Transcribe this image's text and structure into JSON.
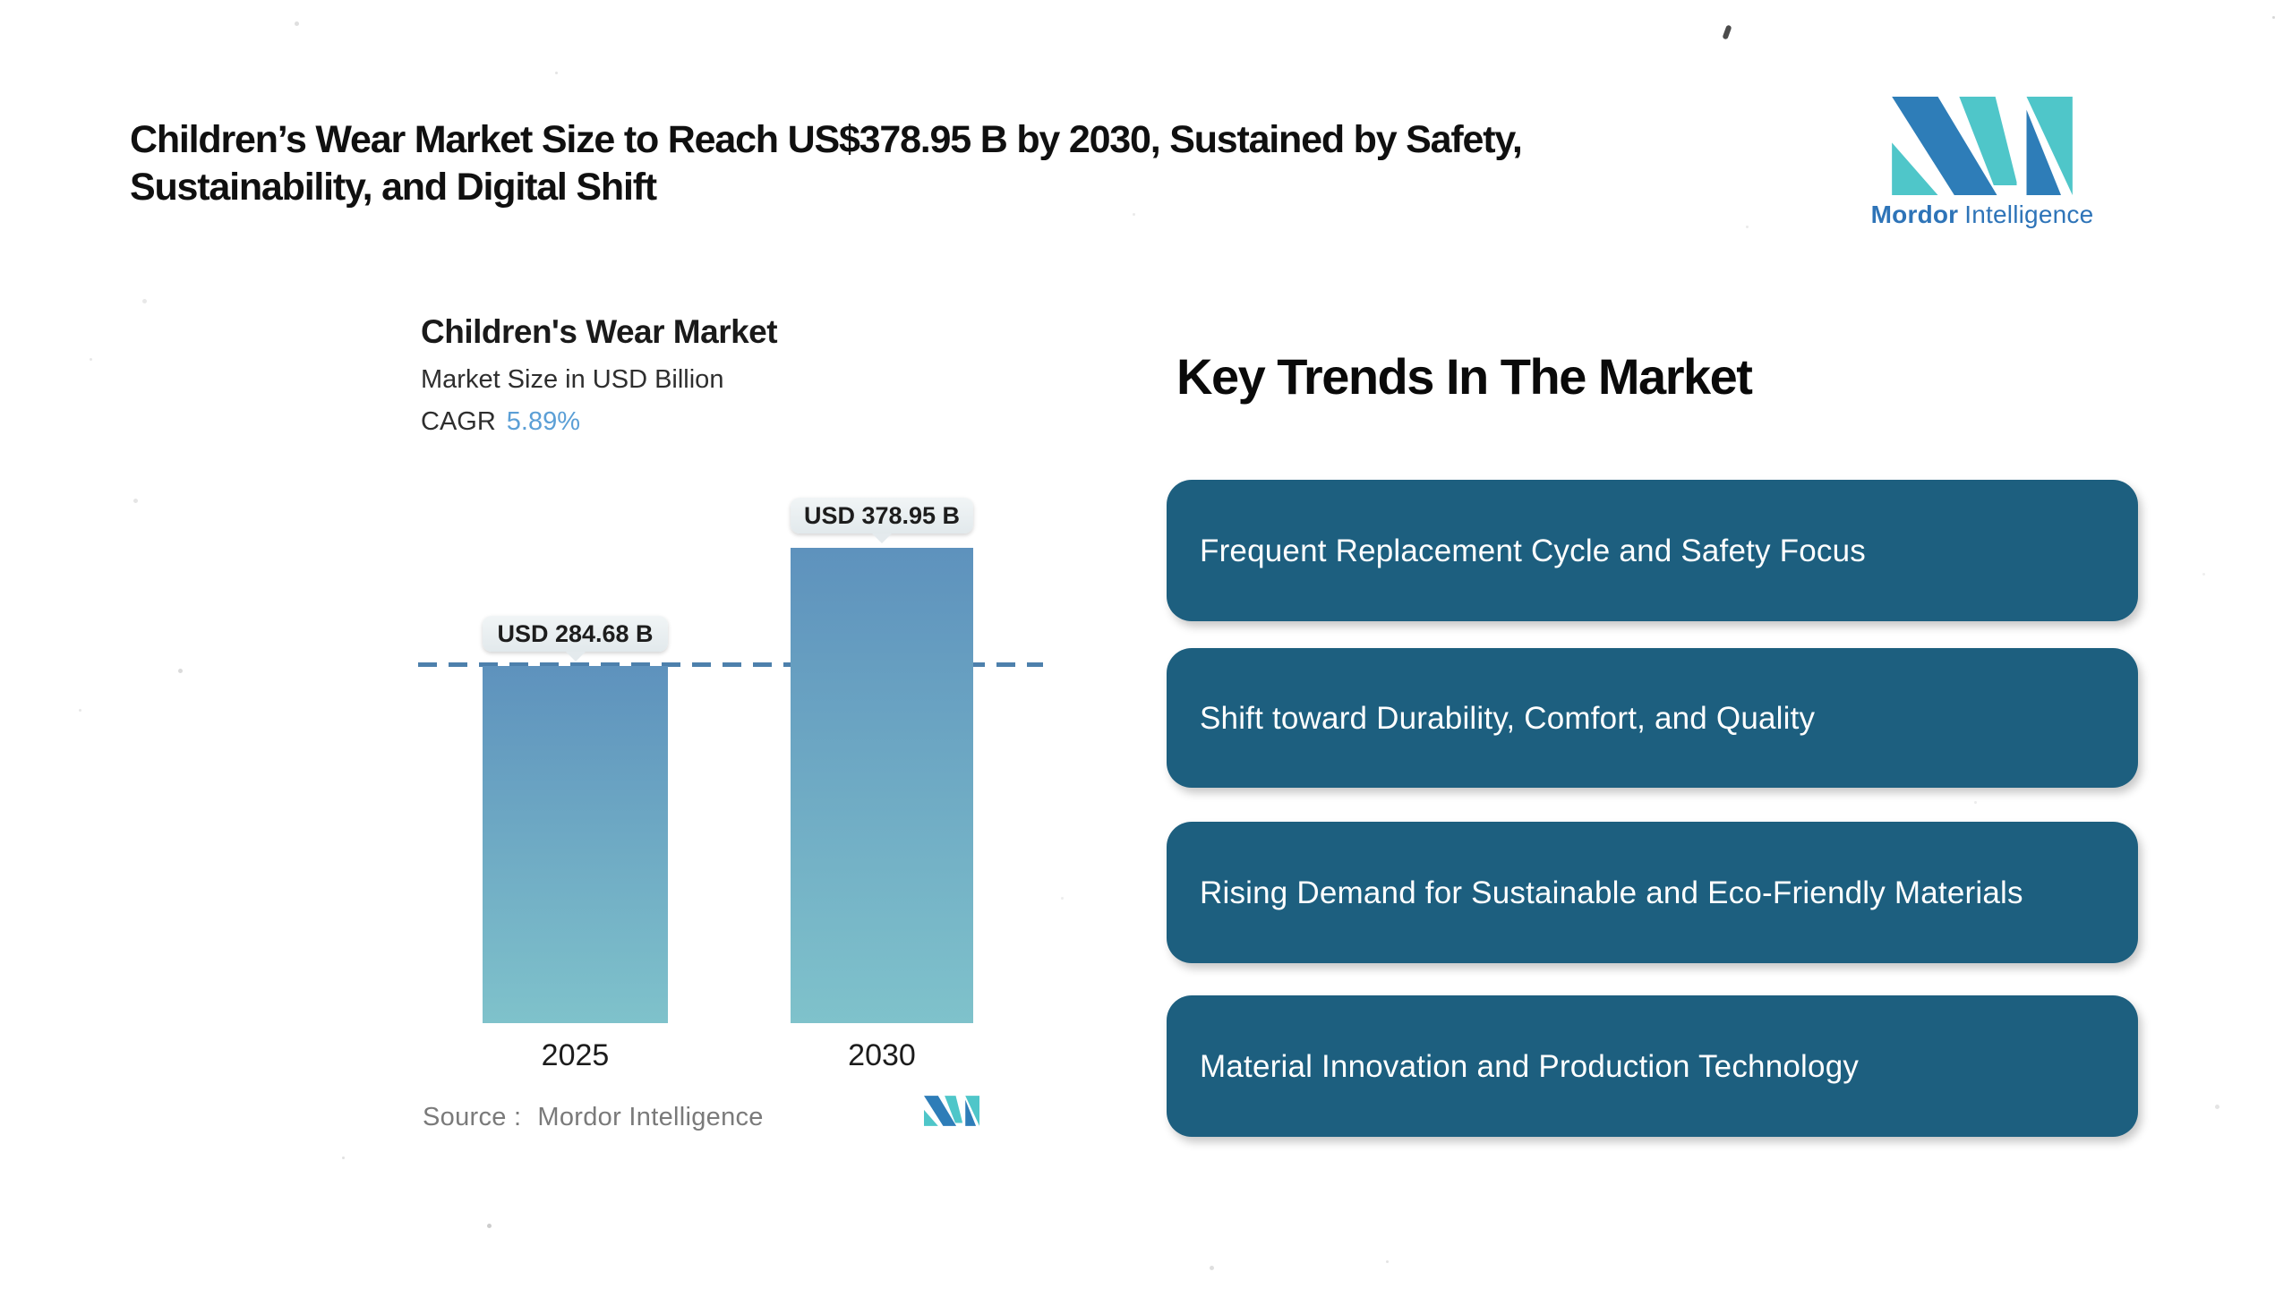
{
  "page": {
    "title_line1": "Children’s Wear Market Size to Reach US$378.95 B by 2030, Sustained by Safety,",
    "title_line2": "Sustainability, and Digital Shift"
  },
  "brand_logo": {
    "word_bold": "Mordor",
    "word_light": "Intelligence",
    "colors": {
      "blue": "#2e7db8",
      "teal": "#4fc6c9",
      "text": "#2e74b8"
    }
  },
  "chart": {
    "title": "Children's Wear Market",
    "subtitle": "Market Size in USD Billion",
    "cagr_label": "CAGR",
    "cagr_value": "5.89%",
    "source_label": "Source :",
    "source_value": "Mordor Intelligence",
    "colors": {
      "bar_gradient_top": "#5e92bd",
      "bar_gradient_bottom": "#7fc2cb",
      "dashed_line": "#4d80ac",
      "cagr_value": "#5b9fd6"
    }
  },
  "chart_data": {
    "type": "bar",
    "categories": [
      "2025",
      "2030"
    ],
    "values": [
      284.68,
      378.95
    ],
    "bar_labels": [
      "USD 284.68 B",
      "USD 378.95 B"
    ],
    "title": "Children's Wear Market",
    "subtitle": "Market Size in USD Billion",
    "cagr": "5.89%",
    "xlabel": "",
    "ylabel": "Market Size in USD Billion",
    "reference_line_value": 284.68,
    "grid": false,
    "legend": false,
    "source": "Source : Mordor Intelligence"
  },
  "trends": {
    "heading": "Key Trends In The Market",
    "box_color": "#1d5f7f",
    "items": [
      {
        "label": "Frequent Replacement Cycle and Safety Focus"
      },
      {
        "label": "Shift toward Durability, Comfort, and Quality"
      },
      {
        "label": "Rising Demand for Sustainable and Eco-Friendly Materials"
      },
      {
        "label": "Material Innovation and Production Technology"
      }
    ]
  }
}
